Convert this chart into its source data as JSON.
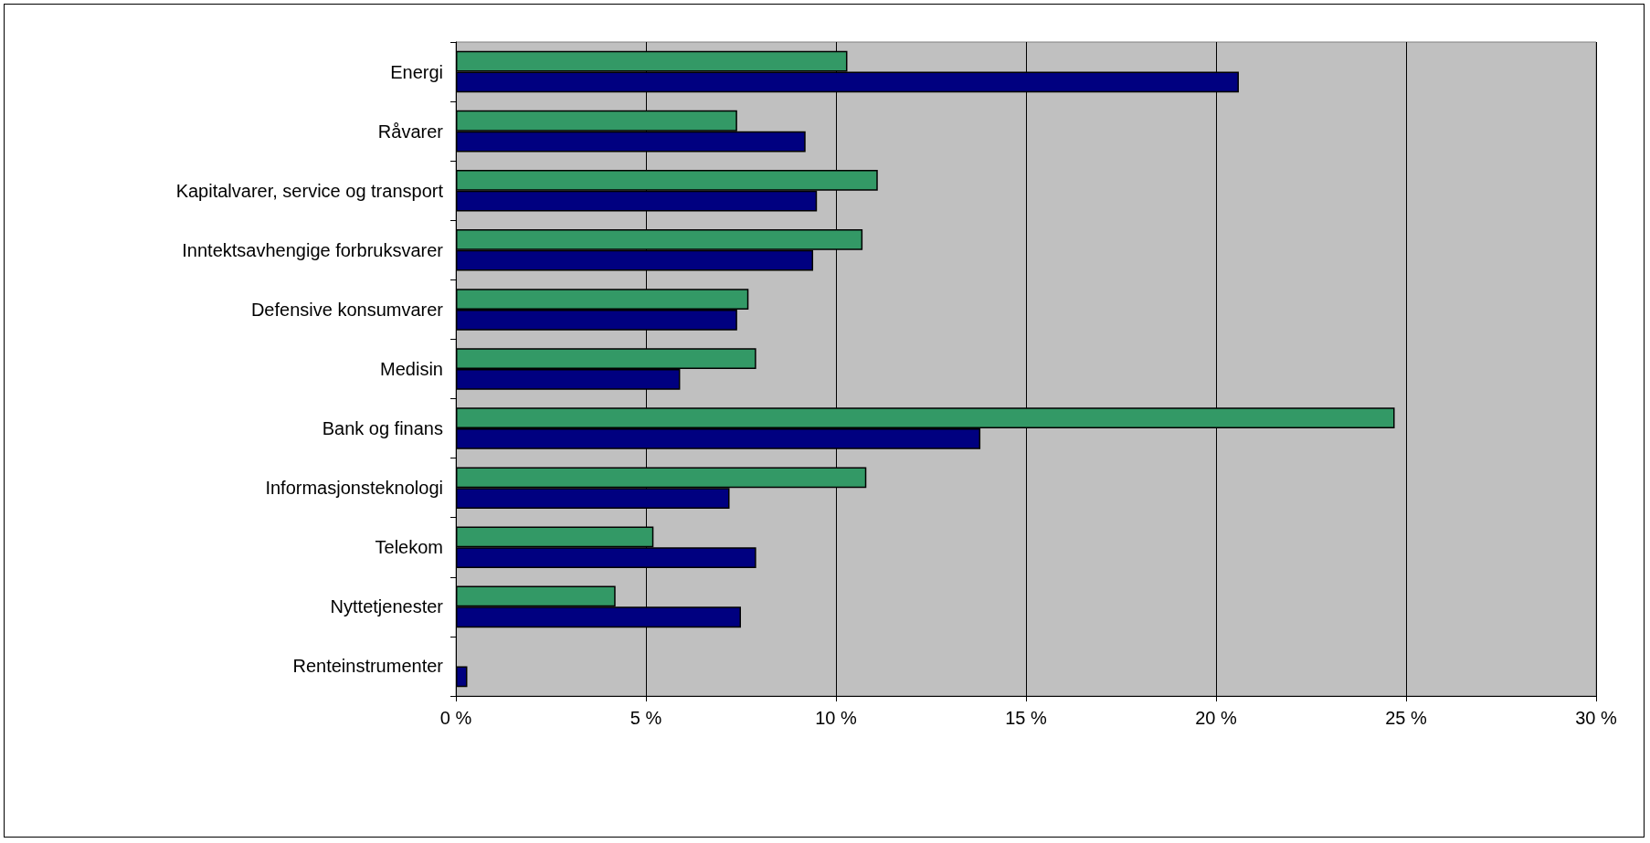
{
  "chart_data": {
    "type": "bar",
    "orientation": "horizontal",
    "categories": [
      "Energi",
      "Råvarer",
      "Kapitalvarer, service og transport",
      "Inntektsavhengige forbruksvarer",
      "Defensive konsumvarer",
      "Medisin",
      "Bank og finans",
      "Informasjonsteknologi",
      "Telekom",
      "Nyttetjenester",
      "Renteinstrumenter"
    ],
    "series": [
      {
        "color": "#339966",
        "values": [
          10.3,
          7.4,
          11.1,
          10.7,
          7.7,
          7.9,
          24.7,
          10.8,
          5.2,
          4.2,
          null
        ]
      },
      {
        "color": "#000080",
        "values": [
          20.6,
          9.2,
          9.5,
          9.4,
          7.4,
          5.9,
          13.8,
          7.2,
          7.9,
          7.5,
          0.3
        ]
      }
    ],
    "xlim": [
      0,
      30
    ],
    "xticks": [
      {
        "value": 0,
        "label": "0 %"
      },
      {
        "value": 5,
        "label": "5 %"
      },
      {
        "value": 10,
        "label": "10 %"
      },
      {
        "value": 15,
        "label": "15 %"
      },
      {
        "value": 20,
        "label": "20 %"
      },
      {
        "value": 25,
        "label": "25 %"
      },
      {
        "value": 30,
        "label": "30 %"
      }
    ],
    "grid": "x"
  }
}
